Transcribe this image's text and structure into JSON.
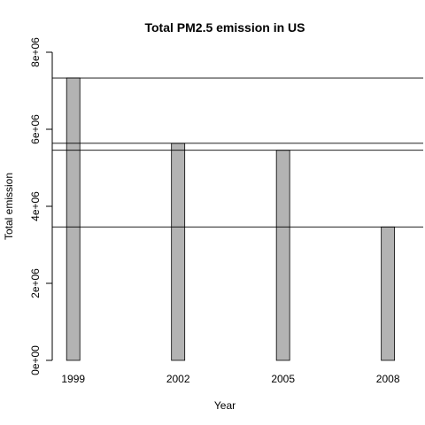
{
  "chart_data": {
    "type": "bar",
    "title": "Total PM2.5 emission in US",
    "xlabel": "Year",
    "ylabel": "Total emission",
    "categories": [
      "1999",
      "2002",
      "2005",
      "2008"
    ],
    "x": [
      1999,
      2002,
      2005,
      2008
    ],
    "values": [
      7332967,
      5635780,
      5454703,
      3464206
    ],
    "xlim": [
      1998.4,
      2008.3
    ],
    "ylim": [
      0,
      8000000
    ],
    "y_ticks": [
      0,
      2000000,
      4000000,
      6000000,
      8000000
    ],
    "y_tick_labels": [
      "0e+00",
      "2e+06",
      "4e+06",
      "6e+06",
      "8e+06"
    ],
    "x_tick_labels": [
      "1999",
      "2002",
      "2005",
      "2008"
    ],
    "reference_lines": [
      7332967,
      5635780,
      5454703,
      3464206
    ],
    "bar_color": "#b3b3b3",
    "line_color": "#000000",
    "grid": false,
    "legend": false
  }
}
